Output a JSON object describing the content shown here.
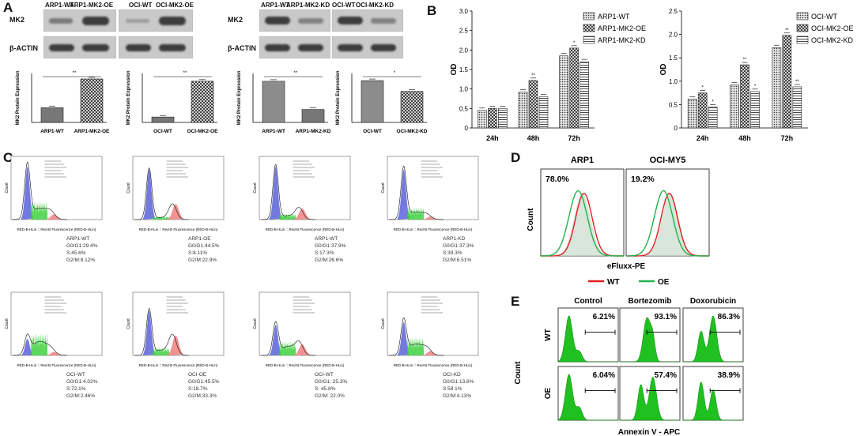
{
  "panels": {
    "A": "A",
    "B": "B",
    "C": "C",
    "D": "D",
    "E": "E"
  },
  "panelA": {
    "blot_left": {
      "headers": [
        "ARP1-WT",
        "ARP1-MK2-OE",
        "OCI-WT",
        "OCI-MK2-OE"
      ],
      "row_labels": [
        "MK2",
        "β-ACTIN"
      ]
    },
    "blot_right": {
      "headers": [
        "ARP1-WT",
        "ARP1-MK2-KD",
        "OCI-WT",
        "OCI-MK2-KD"
      ],
      "row_labels": [
        "MK2",
        "β-ACTIN"
      ]
    },
    "ylabel": "MK2 Protein Expression",
    "bar_charts": [
      {
        "categories": [
          "ARP1-WT",
          "ARP1-MK2-OE"
        ],
        "values": [
          0.48,
          1.42
        ],
        "sig": "**",
        "ymax": 1.6
      },
      {
        "categories": [
          "OCI-WT",
          "OCI-MK2-OE"
        ],
        "values": [
          0.16,
          1.22
        ],
        "sig": "**",
        "ymax": 1.45
      },
      {
        "categories": [
          "ARP1-WT",
          "ARP1-MK2-KD"
        ],
        "values": [
          1.05,
          0.33
        ],
        "sig": "**",
        "ymax": 1.25
      },
      {
        "categories": [
          "OCI-WT",
          "OCI-MK2-KD"
        ],
        "values": [
          1.28,
          0.95
        ],
        "sig": "*",
        "ymax": 1.5
      }
    ]
  },
  "chart_data": [
    {
      "type": "bar",
      "title": "",
      "xlabel": "",
      "ylabel": "OD",
      "categories": [
        "24h",
        "48h",
        "72h"
      ],
      "ylim": [
        0,
        3.0
      ],
      "yticks": [
        "0",
        "0.5",
        "1.0",
        "1.5",
        "2.0",
        "2.5",
        "3.0"
      ],
      "series": [
        {
          "name": "ARP1-WT",
          "values": [
            0.45,
            0.92,
            1.85
          ]
        },
        {
          "name": "ARP1-MK2-OE",
          "values": [
            0.5,
            1.22,
            2.05
          ]
        },
        {
          "name": "ARP1-MK2-KD",
          "values": [
            0.5,
            0.8,
            1.7
          ]
        }
      ],
      "sig": [
        [
          "",
          "",
          ""
        ],
        [
          "",
          "**",
          "*"
        ],
        [
          "",
          "",
          ""
        ]
      ],
      "legend": "top-right"
    },
    {
      "type": "bar",
      "title": "",
      "xlabel": "",
      "ylabel": "OD",
      "categories": [
        "24h",
        "48h",
        "72h"
      ],
      "ylim": [
        0,
        2.5
      ],
      "yticks": [
        "0",
        "0.5",
        "1.0",
        "1.5",
        "2.0",
        "2.5"
      ],
      "series": [
        {
          "name": "OCI-WT",
          "values": [
            0.62,
            0.92,
            1.72
          ]
        },
        {
          "name": "OCI-MK2-OE",
          "values": [
            0.75,
            1.35,
            1.98
          ]
        },
        {
          "name": "OCI-MK2-KD",
          "values": [
            0.45,
            0.78,
            0.88
          ]
        }
      ],
      "sig": [
        [
          "",
          "",
          ""
        ],
        [
          "*",
          "**",
          "**"
        ],
        [
          "*",
          "*",
          "**"
        ]
      ],
      "legend": "top-right"
    }
  ],
  "panelC": {
    "xaxis_label": "RED-B-HLin :: Red-B Fluorescence (RED-B-HLin)",
    "yaxis_label": "Count",
    "plots": [
      {
        "name": "ARP1-WT",
        "g0g1": "G0/G1:29.4%",
        "s": "S:45.6%",
        "g2m": "G2/M:8.12%"
      },
      {
        "name": "ARP1-OE",
        "g0g1": "G0/G1:44.5%",
        "s": "S:8.11%",
        "g2m": "G2/M:22.9%"
      },
      {
        "name": "ARP1-WT",
        "g0g1": "G0/G1:37.9%",
        "s": "S:17.3%",
        "g2m": "G2/M:26.6%"
      },
      {
        "name": "ARP1-KD",
        "g0g1": "G0/G1:37.3%",
        "s": "S:39.3%",
        "g2m": "G2/M:6.51%"
      },
      {
        "name": "OCI-WT",
        "g0g1": "G0/G1:4.02%",
        "s": "S:72.1%",
        "g2m": "G2/M:2.46%"
      },
      {
        "name": "OCI-OE",
        "g0g1": "G0/G1:45.5%",
        "s": "S:18.7%",
        "g2m": "G2/M:33.3%"
      },
      {
        "name": "OCI-WT",
        "g0g1": "G0/G1: 25.3%",
        "s": "S: 45.8%",
        "g2m": "G2/M: 22.0%"
      },
      {
        "name": "OCI-KD",
        "g0g1": "G0/G1:13.6%",
        "s": "S:58.1%",
        "g2m": "G2/M:4.13%"
      }
    ]
  },
  "panelD": {
    "titles": [
      "ARP1",
      "OCI-MY5"
    ],
    "percents": [
      "78.0%",
      "19.2%"
    ],
    "ylabel": "Count",
    "xlabel": "eFluxx-PE",
    "legend": [
      {
        "name": "WT",
        "color": "#e02020"
      },
      {
        "name": "OE",
        "color": "#22b24c"
      }
    ]
  },
  "panelE": {
    "columns": [
      "Control",
      "Bortezomib",
      "Doxorubicin"
    ],
    "rows": [
      "WT",
      "OE"
    ],
    "percents": [
      [
        "6.21%",
        "93.1%",
        "86.3%"
      ],
      [
        "6.04%",
        "57.4%",
        "38.9%"
      ]
    ],
    "ylabel": "Count",
    "xlabel": "Annexin V - APC"
  },
  "colors": {
    "green": "#22c02a",
    "red": "#e02020",
    "blue": "#4b56d6",
    "bar": "#8a8a8a"
  }
}
